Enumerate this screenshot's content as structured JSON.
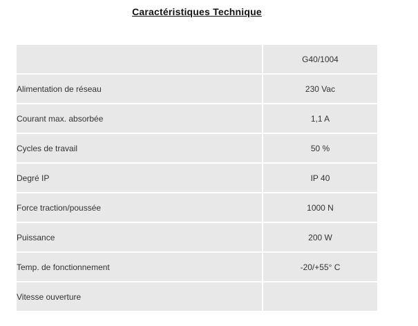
{
  "page": {
    "title": "Caractéristiques Technique"
  },
  "table": {
    "header": {
      "label": "",
      "model": "G40/1004"
    },
    "rows": [
      {
        "label": "Alimentation de réseau",
        "value": "230 Vac"
      },
      {
        "label": "Courant max. absorbée",
        "value": "1,1 A"
      },
      {
        "label": "Cycles de travail",
        "value": "50 %"
      },
      {
        "label": "Degré IP",
        "value": "IP 40"
      },
      {
        "label": "Force traction/poussée",
        "value": "1000 N"
      },
      {
        "label": "Puissance",
        "value": "200 W"
      },
      {
        "label": "Temp. de fonctionnement",
        "value": "-20/+55° C"
      },
      {
        "label": "Vitesse ouverture",
        "value": ""
      }
    ],
    "colors": {
      "cell_bg": "#e8e8e8",
      "gap": "#ffffff",
      "text": "#333333"
    }
  }
}
